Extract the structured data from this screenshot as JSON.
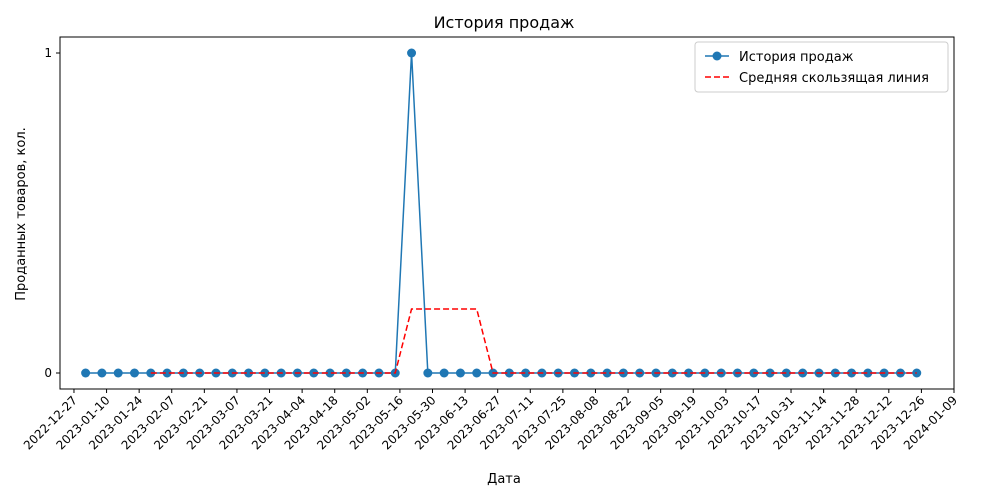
{
  "chart_data": {
    "type": "line",
    "title": "История продаж",
    "xlabel": "Дата",
    "ylabel": "Проданных товаров, кол.",
    "ylim": [
      -0.05,
      1.05
    ],
    "xlim": [
      "2022-12-21",
      "2024-01-09"
    ],
    "y_ticks": [
      "0",
      "1"
    ],
    "x_ticks": [
      "2022-12-27",
      "2023-01-10",
      "2023-01-24",
      "2023-02-07",
      "2023-02-21",
      "2023-03-07",
      "2023-03-21",
      "2023-04-04",
      "2023-04-18",
      "2023-05-02",
      "2023-05-16",
      "2023-05-30",
      "2023-06-13",
      "2023-06-27",
      "2023-07-11",
      "2023-07-25",
      "2023-08-08",
      "2023-08-22",
      "2023-09-05",
      "2023-09-19",
      "2023-10-03",
      "2023-10-17",
      "2023-10-31",
      "2023-11-14",
      "2023-11-28",
      "2023-12-12",
      "2023-12-26",
      "2024-01-09"
    ],
    "grid": false,
    "legend_position": "top-right",
    "series": [
      {
        "name": "История продаж",
        "color": "#1f77b4",
        "style": "solid",
        "marker": "circle",
        "x": [
          "2023-01-01",
          "2023-01-08",
          "2023-01-15",
          "2023-01-22",
          "2023-01-29",
          "2023-02-05",
          "2023-02-12",
          "2023-02-19",
          "2023-02-26",
          "2023-03-05",
          "2023-03-12",
          "2023-03-19",
          "2023-03-26",
          "2023-04-02",
          "2023-04-09",
          "2023-04-16",
          "2023-04-23",
          "2023-04-30",
          "2023-05-07",
          "2023-05-14",
          "2023-05-21",
          "2023-05-28",
          "2023-06-04",
          "2023-06-11",
          "2023-06-18",
          "2023-06-25",
          "2023-07-02",
          "2023-07-09",
          "2023-07-16",
          "2023-07-23",
          "2023-07-30",
          "2023-08-06",
          "2023-08-13",
          "2023-08-20",
          "2023-08-27",
          "2023-09-03",
          "2023-09-10",
          "2023-09-17",
          "2023-09-24",
          "2023-10-01",
          "2023-10-08",
          "2023-10-15",
          "2023-10-22",
          "2023-10-29",
          "2023-11-05",
          "2023-11-12",
          "2023-11-19",
          "2023-11-26",
          "2023-12-03",
          "2023-12-10",
          "2023-12-17",
          "2023-12-24"
        ],
        "values": [
          0,
          0,
          0,
          0,
          0,
          0,
          0,
          0,
          0,
          0,
          0,
          0,
          0,
          0,
          0,
          0,
          0,
          0,
          0,
          0,
          1,
          0,
          0,
          0,
          0,
          0,
          0,
          0,
          0,
          0,
          0,
          0,
          0,
          0,
          0,
          0,
          0,
          0,
          0,
          0,
          0,
          0,
          0,
          0,
          0,
          0,
          0,
          0,
          0,
          0,
          0,
          0
        ]
      },
      {
        "name": "Средняя скользящая линия",
        "color": "#ff0000",
        "style": "dashed",
        "x": [
          "2023-01-29",
          "2023-02-05",
          "2023-02-12",
          "2023-02-19",
          "2023-02-26",
          "2023-03-05",
          "2023-03-12",
          "2023-03-19",
          "2023-03-26",
          "2023-04-02",
          "2023-04-09",
          "2023-04-16",
          "2023-04-23",
          "2023-04-30",
          "2023-05-07",
          "2023-05-14",
          "2023-05-21",
          "2023-05-28",
          "2023-06-04",
          "2023-06-11",
          "2023-06-18",
          "2023-06-25",
          "2023-07-02",
          "2023-07-09",
          "2023-07-16",
          "2023-07-23",
          "2023-07-30",
          "2023-08-06",
          "2023-08-13",
          "2023-08-20",
          "2023-08-27",
          "2023-09-03",
          "2023-09-10",
          "2023-09-17",
          "2023-09-24",
          "2023-10-01",
          "2023-10-08",
          "2023-10-15",
          "2023-10-22",
          "2023-10-29",
          "2023-11-05",
          "2023-11-12",
          "2023-11-19",
          "2023-11-26",
          "2023-12-03",
          "2023-12-10",
          "2023-12-17",
          "2023-12-24"
        ],
        "values": [
          0,
          0,
          0,
          0,
          0,
          0,
          0,
          0,
          0,
          0,
          0,
          0,
          0,
          0,
          0,
          0,
          0.2,
          0.2,
          0.2,
          0.2,
          0.2,
          0,
          0,
          0,
          0,
          0,
          0,
          0,
          0,
          0,
          0,
          0,
          0,
          0,
          0,
          0,
          0,
          0,
          0,
          0,
          0,
          0,
          0,
          0,
          0,
          0,
          0,
          0
        ]
      }
    ]
  }
}
